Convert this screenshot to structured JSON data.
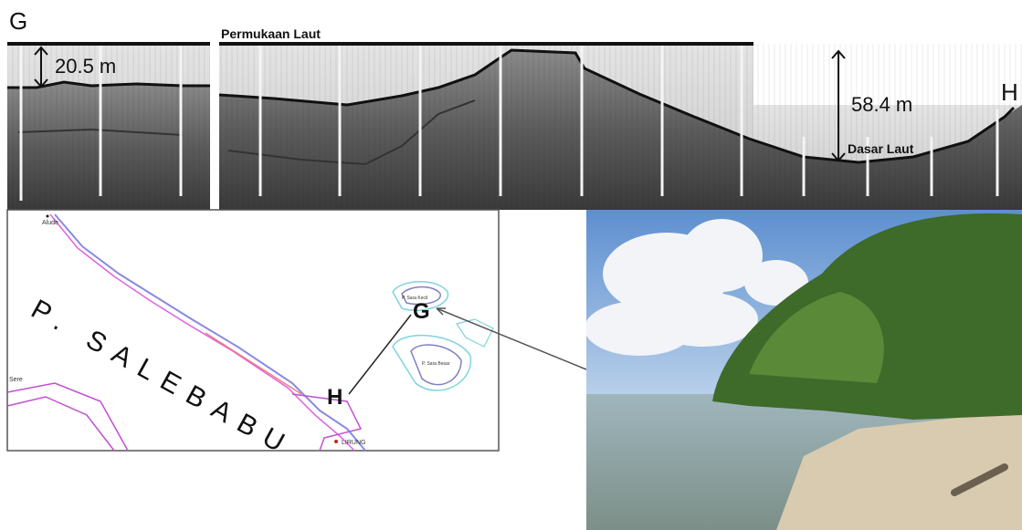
{
  "profile": {
    "start_label": "G",
    "end_label": "H",
    "sea_surface": "Permukaan Laut",
    "depth_start": "20.5 m",
    "depth_end": "58.4 m",
    "seabed": "Dasar Laut"
  },
  "map": {
    "island": "P. SALEBABU",
    "point_g": "G",
    "point_h": "H",
    "places": [
      "Alude",
      "Sere",
      "LIRUNG",
      "P. Sara Kecil",
      "P. Sara Besar"
    ]
  }
}
